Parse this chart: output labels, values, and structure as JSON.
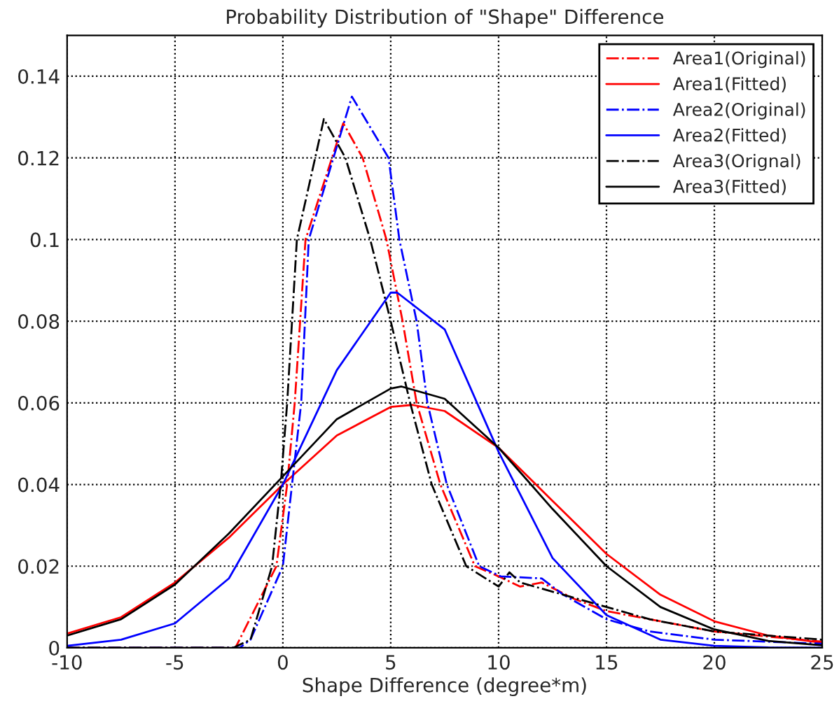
{
  "chart_data": {
    "type": "line",
    "title": "Probability Distribution of \"Shape\" Difference",
    "xlabel": "Shape Difference (degree*m)",
    "xlim": [
      -10,
      25
    ],
    "xticks": [
      -10,
      -5,
      0,
      5,
      10,
      15,
      20,
      25
    ],
    "ylim": [
      0,
      0.15
    ],
    "yticks": [
      0,
      0.02,
      0.04,
      0.06,
      0.08,
      0.1,
      0.12,
      0.14
    ],
    "grid": true,
    "legend": "top right",
    "marker": "none",
    "series": [
      {
        "name": "Area1(Original)",
        "color": "#ff0000",
        "line_style": "dashdot",
        "x": [
          -10,
          -5,
          -2.2,
          -0.3,
          0.2,
          0.55,
          1.05,
          2.8,
          3.7,
          4.8,
          5.55,
          6.2,
          7.3,
          8.9,
          10,
          11,
          12,
          13.5,
          15,
          17,
          20,
          22,
          25
        ],
        "values": [
          0,
          0,
          0,
          0.02,
          0.04,
          0.06,
          0.1,
          0.1285,
          0.12,
          0.1,
          0.08,
          0.06,
          0.04,
          0.02,
          0.0175,
          0.015,
          0.016,
          0.012,
          0.009,
          0.007,
          0.004,
          0.003,
          0.0015
        ]
      },
      {
        "name": "Area1(Fitted)",
        "color": "#ff0000",
        "line_style": "solid",
        "x": [
          -10,
          -7.5,
          -5,
          -2.5,
          0,
          2.5,
          5,
          6,
          7.5,
          10,
          12.5,
          15,
          17.5,
          20,
          22.5,
          25
        ],
        "values": [
          0.0035,
          0.0075,
          0.016,
          0.027,
          0.04,
          0.052,
          0.059,
          0.0595,
          0.058,
          0.049,
          0.036,
          0.023,
          0.013,
          0.0065,
          0.003,
          0.0012
        ]
      },
      {
        "name": "Area2(Original)",
        "color": "#0000ff",
        "line_style": "dashdot",
        "x": [
          -10,
          -5,
          -2,
          -1.5,
          0,
          0.85,
          1.2,
          3.2,
          4.9,
          5.4,
          6.2,
          6.7,
          7.6,
          9.1,
          10.1,
          12,
          13,
          15,
          17,
          20,
          25
        ],
        "values": [
          0,
          0,
          0,
          0.002,
          0.02,
          0.06,
          0.1,
          0.135,
          0.12,
          0.1,
          0.08,
          0.06,
          0.04,
          0.02,
          0.0175,
          0.017,
          0.013,
          0.007,
          0.004,
          0.002,
          0.001
        ]
      },
      {
        "name": "Area2(Fitted)",
        "color": "#0000ff",
        "line_style": "solid",
        "x": [
          -10,
          -7.5,
          -5,
          -2.5,
          0,
          2.5,
          5,
          5.3,
          7.5,
          10,
          12.5,
          15,
          17.5,
          20,
          22.5,
          25
        ],
        "values": [
          0.0005,
          0.002,
          0.006,
          0.017,
          0.04,
          0.068,
          0.087,
          0.087,
          0.078,
          0.048,
          0.022,
          0.008,
          0.002,
          0.0005,
          0.0001,
          0
        ]
      },
      {
        "name": "Area3(Orignal)",
        "color": "#000000",
        "line_style": "dashdot",
        "x": [
          -10,
          -5,
          -2.3,
          -1.5,
          -0.5,
          -0.1,
          0.2,
          0.65,
          1.9,
          2.9,
          4.05,
          5.0,
          5.9,
          6.9,
          8.5,
          10,
          10.5,
          11,
          13,
          15,
          17,
          20,
          25
        ],
        "values": [
          0,
          0,
          0,
          0.002,
          0.02,
          0.04,
          0.06,
          0.1,
          0.1295,
          0.12,
          0.1,
          0.08,
          0.06,
          0.04,
          0.02,
          0.015,
          0.0185,
          0.016,
          0.013,
          0.01,
          0.007,
          0.004,
          0.002
        ]
      },
      {
        "name": "Area3(Fitted)",
        "color": "#000000",
        "line_style": "solid",
        "x": [
          -10,
          -7.5,
          -5,
          -2.5,
          0,
          2.5,
          5,
          5.5,
          7.5,
          10,
          12.5,
          15,
          17.5,
          20,
          22.5,
          25
        ],
        "values": [
          0.003,
          0.007,
          0.0155,
          0.028,
          0.042,
          0.056,
          0.0635,
          0.064,
          0.061,
          0.049,
          0.034,
          0.02,
          0.01,
          0.0045,
          0.0017,
          0.0006
        ]
      }
    ]
  }
}
